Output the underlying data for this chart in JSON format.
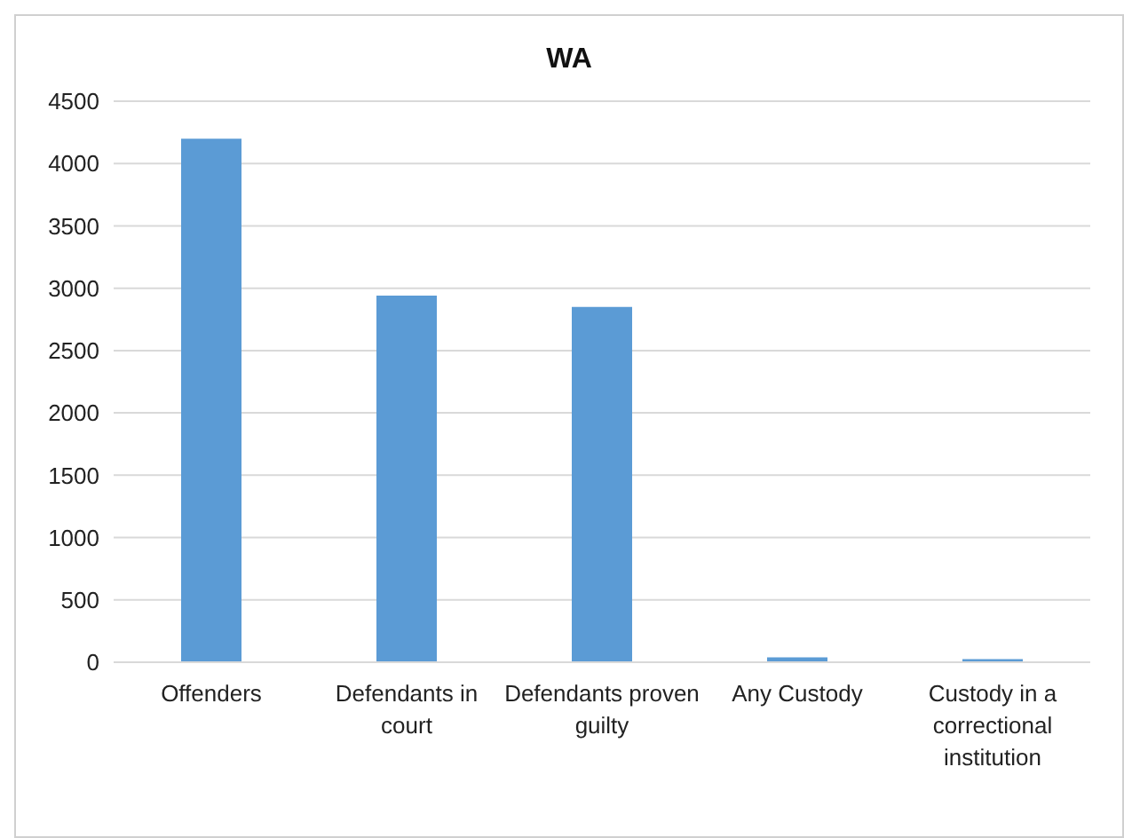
{
  "chart_data": {
    "type": "bar",
    "title": "WA",
    "categories": [
      "Offenders",
      "Defendants in court",
      "Defendants proven guilty",
      "Any Custody",
      "Custody in a correctional institution"
    ],
    "values": [
      4200,
      2940,
      2850,
      40,
      25
    ],
    "color": "#5b9bd5",
    "ylim": [
      0,
      4500
    ],
    "yticks": [
      0,
      500,
      1000,
      1500,
      2000,
      2500,
      3000,
      3500,
      4000,
      4500
    ],
    "grid": "y"
  }
}
